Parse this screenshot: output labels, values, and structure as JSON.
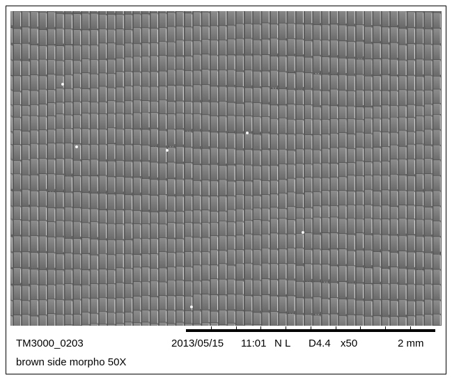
{
  "micrograph": {
    "description_icon": "sem-micrograph-image"
  },
  "info_bar": {
    "image_id": "TM3000_0203",
    "date": "2013/05/15",
    "time": "11:01",
    "mode": "N L",
    "working_distance": "D4.4",
    "magnification": "x50",
    "scale": "2 mm"
  },
  "caption": "brown side morpho 50X"
}
